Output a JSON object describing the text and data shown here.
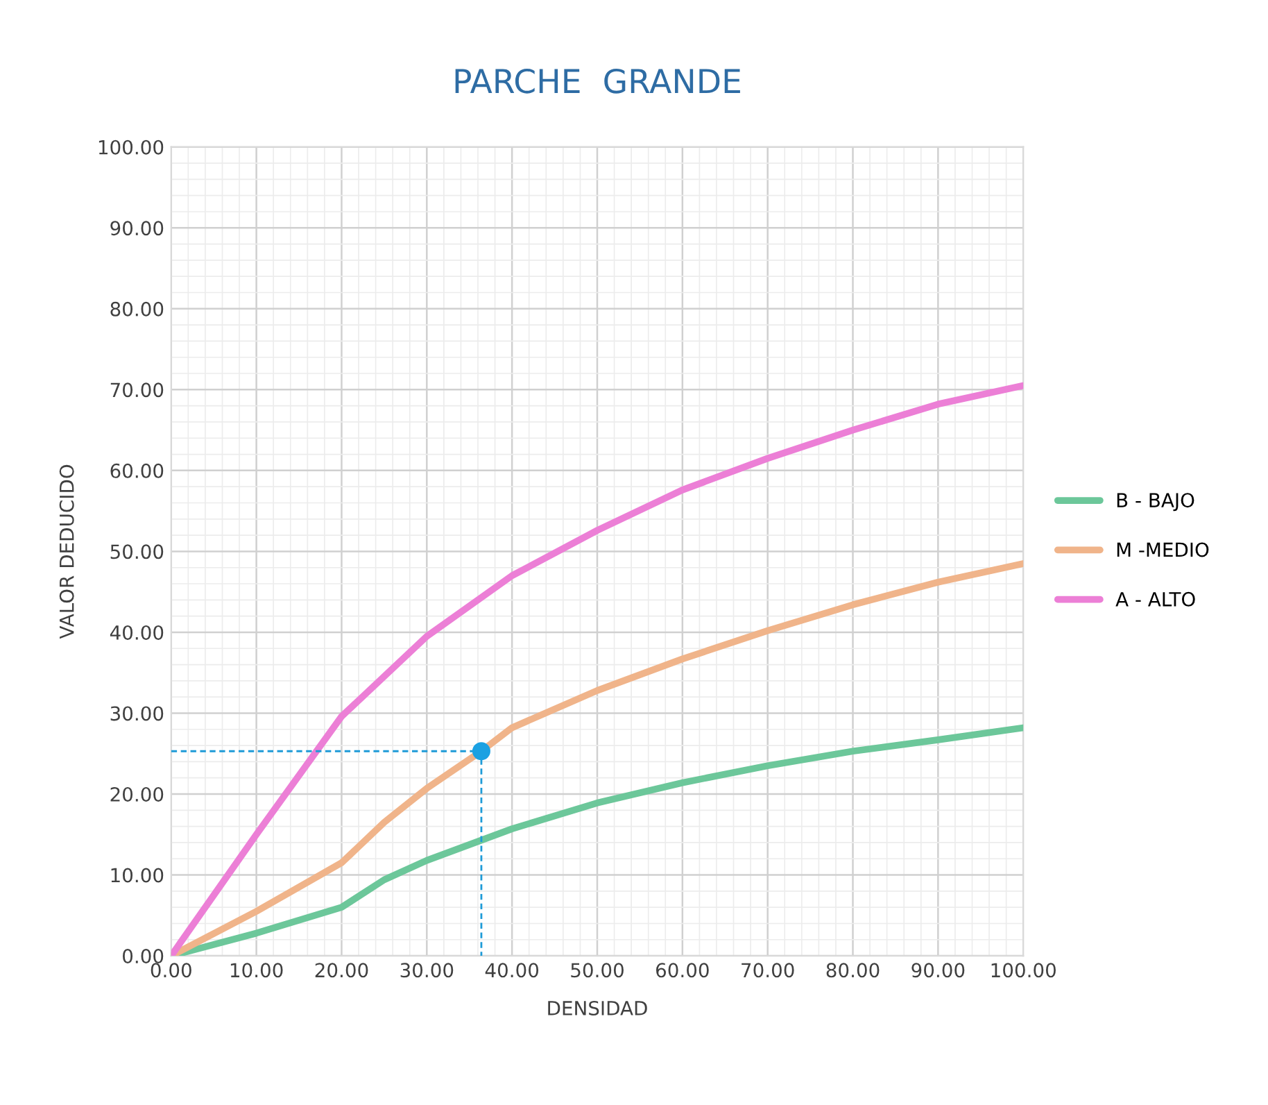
{
  "chart_data": {
    "type": "line",
    "title": "PARCHE  GRANDE",
    "xlabel": "DENSIDAD",
    "ylabel": "VALOR DEDUCIDO",
    "xlim": [
      0,
      100
    ],
    "ylim": [
      0,
      100
    ],
    "xticks": [
      {
        "value": 0,
        "label": "0.00"
      },
      {
        "value": 10,
        "label": "10.00"
      },
      {
        "value": 20,
        "label": "20.00"
      },
      {
        "value": 30,
        "label": "30.00"
      },
      {
        "value": 40,
        "label": "40.00"
      },
      {
        "value": 50,
        "label": "50.00"
      },
      {
        "value": 60,
        "label": "60.00"
      },
      {
        "value": 70,
        "label": "70.00"
      },
      {
        "value": 80,
        "label": "80.00"
      },
      {
        "value": 90,
        "label": "90.00"
      },
      {
        "value": 100,
        "label": "100.00"
      }
    ],
    "yticks": [
      {
        "value": 0,
        "label": "0.00"
      },
      {
        "value": 10,
        "label": "10.00"
      },
      {
        "value": 20,
        "label": "20.00"
      },
      {
        "value": 30,
        "label": "30.00"
      },
      {
        "value": 40,
        "label": "40.00"
      },
      {
        "value": 50,
        "label": "50.00"
      },
      {
        "value": 60,
        "label": "60.00"
      },
      {
        "value": 70,
        "label": "70.00"
      },
      {
        "value": 80,
        "label": "80.00"
      },
      {
        "value": 90,
        "label": "90.00"
      },
      {
        "value": 100,
        "label": "100.00"
      }
    ],
    "grid": true,
    "legend": "right",
    "marker": "none",
    "line_style": "solid",
    "series": [
      {
        "name": "B - BAJO",
        "color": "#6cc79a",
        "x": [
          0,
          10,
          20,
          25,
          30,
          40,
          50,
          60,
          70,
          80,
          90,
          100
        ],
        "values": [
          0,
          2.8,
          6,
          9.4,
          11.8,
          15.7,
          18.9,
          21.4,
          23.5,
          25.3,
          26.7,
          28.2
        ]
      },
      {
        "name": "M -MEDIO",
        "color": "#f0b48a",
        "x": [
          0,
          10,
          20,
          25,
          30,
          36.4,
          40,
          50,
          60,
          70,
          80,
          90,
          100
        ],
        "values": [
          0,
          5.5,
          11.5,
          16.5,
          20.7,
          25.3,
          28.2,
          32.8,
          36.7,
          40.2,
          43.4,
          46.2,
          48.5
        ]
      },
      {
        "name": "A - ALTO",
        "color": "#ec7fd6",
        "x": [
          0,
          10,
          20,
          30,
          40,
          50,
          60,
          70,
          80,
          90,
          100
        ],
        "values": [
          0,
          15,
          29.6,
          39.5,
          47,
          52.6,
          57.6,
          61.5,
          65,
          68.2,
          70.5
        ]
      },
      {
        "type": "line",
        "line_style": "dashed",
        "color": "#1e9bd7",
        "x": [
          0,
          36.4,
          36.4
        ],
        "values": [
          25.3,
          25.3,
          0
        ]
      },
      {
        "type": "scatter",
        "marker": "circle",
        "color": "#1ba1e2",
        "x": [
          36.4
        ],
        "values": [
          25.3
        ]
      }
    ]
  }
}
